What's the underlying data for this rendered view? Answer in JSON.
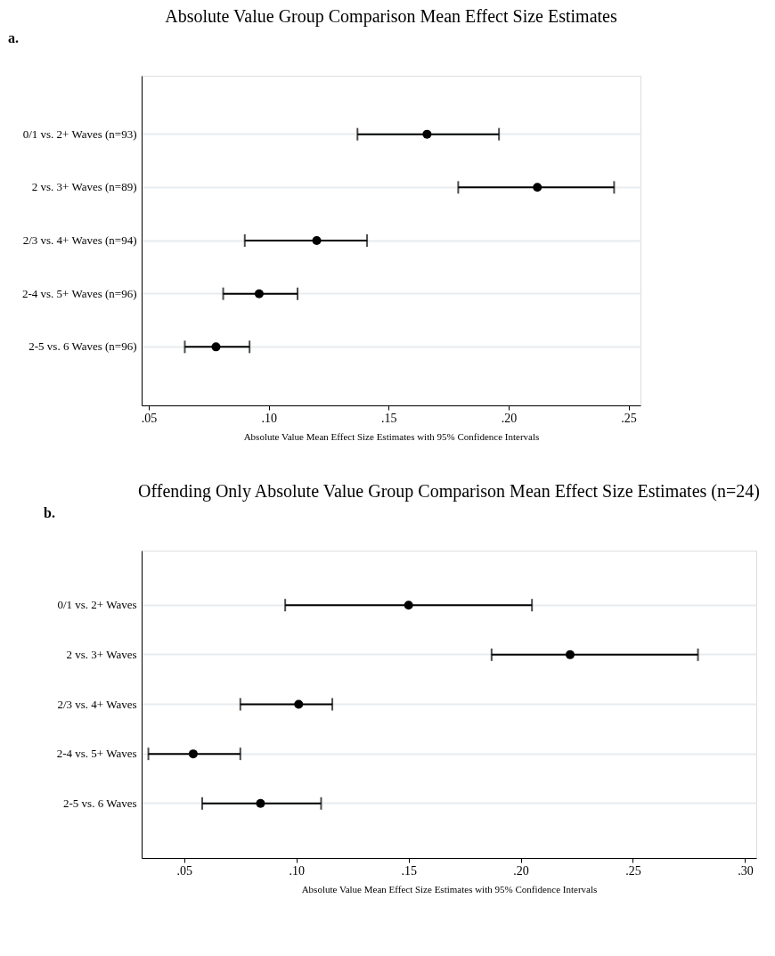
{
  "chart_data": [
    {
      "type": "scatter",
      "title": "Absolute Value Group Comparison Mean Effect Size Estimates",
      "xlabel": "Absolute Value Mean Effect Size Estimates with 95% Confidence Intervals",
      "annotations": [
        "a."
      ],
      "categories": [
        "0/1 vs. 2+ Waves (n=93)",
        "2 vs. 3+ Waves (n=89)",
        "2/3 vs. 4+ Waves (n=94)",
        "2-4 vs. 5+ Waves (n=96)",
        "2-5 vs. 6 Waves (n=96)"
      ],
      "values": [
        0.166,
        0.212,
        0.12,
        0.096,
        0.078
      ],
      "errors": [
        [
          0.137,
          0.196
        ],
        [
          0.179,
          0.244
        ],
        [
          0.09,
          0.141
        ],
        [
          0.081,
          0.112
        ],
        [
          0.065,
          0.092
        ]
      ],
      "color": "#000000",
      "marker": "circle",
      "orientation": "horizontal",
      "grid": "y",
      "xlim": [
        0.047,
        0.255
      ],
      "xticks": [
        {
          "value": 0.05,
          "label": ".05"
        },
        {
          "value": 0.1,
          "label": ".10"
        },
        {
          "value": 0.15,
          "label": ".15"
        },
        {
          "value": 0.2,
          "label": ".20"
        },
        {
          "value": 0.25,
          "label": ".25"
        }
      ]
    },
    {
      "type": "scatter",
      "title": "Offending Only Absolute Value Group Comparison Mean Effect Size Estimates (n=24)",
      "xlabel": "Absolute Value Mean Effect Size Estimates with 95% Confidence Intervals",
      "annotations": [
        "b."
      ],
      "categories": [
        "0/1 vs. 2+ Waves",
        "2 vs. 3+ Waves",
        "2/3 vs. 4+ Waves",
        "2-4 vs. 5+ Waves",
        "2-5 vs. 6 Waves"
      ],
      "values": [
        0.15,
        0.222,
        0.101,
        0.054,
        0.084
      ],
      "errors": [
        [
          0.095,
          0.205
        ],
        [
          0.187,
          0.279
        ],
        [
          0.075,
          0.116
        ],
        [
          0.034,
          0.075
        ],
        [
          0.058,
          0.111
        ]
      ],
      "color": "#000000",
      "marker": "circle",
      "orientation": "horizontal",
      "grid": "y",
      "xlim": [
        0.031,
        0.305
      ],
      "xticks": [
        {
          "value": 0.05,
          "label": ".05"
        },
        {
          "value": 0.1,
          "label": ".10"
        },
        {
          "value": 0.15,
          "label": ".15"
        },
        {
          "value": 0.2,
          "label": ".20"
        },
        {
          "value": 0.25,
          "label": ".25"
        },
        {
          "value": 0.3,
          "label": ".30"
        }
      ]
    }
  ]
}
